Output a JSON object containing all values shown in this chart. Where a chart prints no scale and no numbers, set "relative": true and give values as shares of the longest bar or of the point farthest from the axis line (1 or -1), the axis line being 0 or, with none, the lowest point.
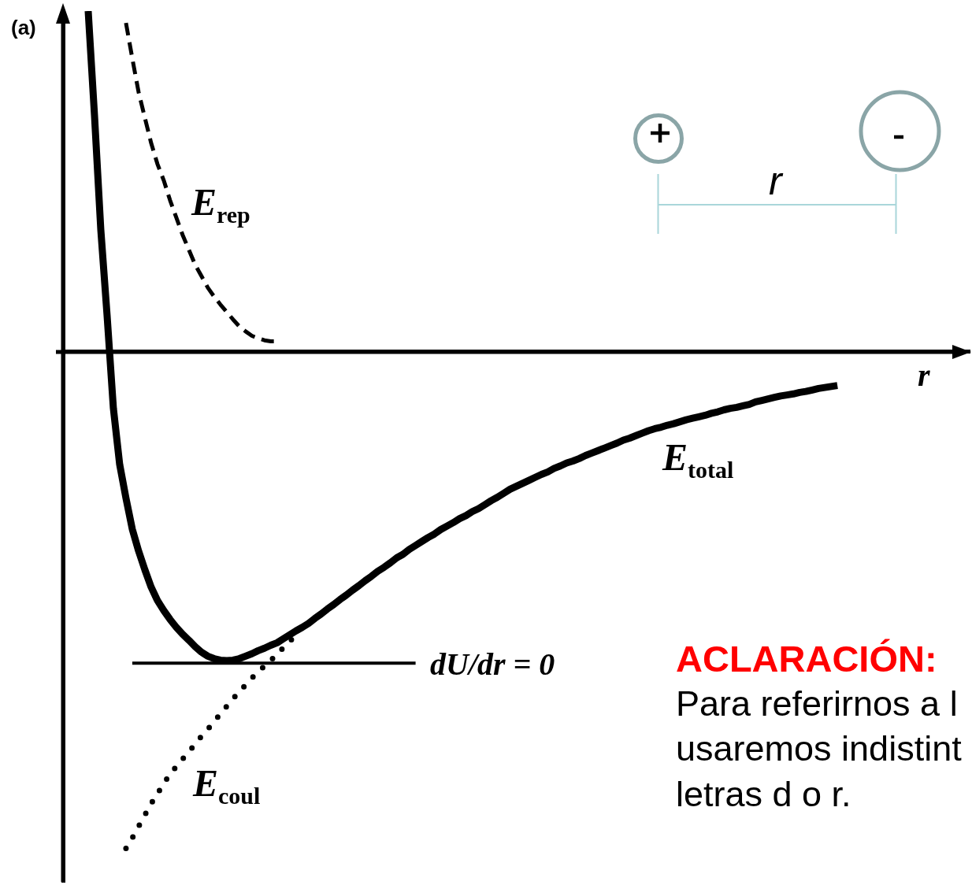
{
  "chart_data": {
    "type": "line",
    "relative": true,
    "xlabel": "r",
    "ylabel": "(a)",
    "categories": [
      null,
      null,
      null,
      null,
      null,
      null,
      null,
      null,
      null,
      null,
      null,
      null,
      null,
      null,
      null,
      null,
      null,
      null,
      null,
      null,
      null,
      null,
      null,
      null,
      null,
      null,
      null,
      null,
      null,
      null,
      null,
      null,
      null,
      null,
      null,
      null,
      null,
      null,
      null,
      null,
      null,
      null,
      null,
      null,
      null,
      null,
      null,
      null,
      null,
      null,
      null,
      null,
      null,
      null,
      null,
      null,
      null,
      null,
      null,
      null,
      null,
      null,
      null,
      null,
      null,
      null,
      null,
      null,
      null,
      null,
      null,
      null,
      null,
      null,
      null,
      null,
      null,
      null,
      null,
      null,
      null,
      null,
      null,
      null,
      null,
      null,
      null,
      null,
      null,
      null,
      null,
      null,
      null,
      null,
      null,
      null,
      null,
      null,
      null,
      null,
      null,
      null,
      null,
      null,
      null,
      null,
      null,
      null,
      null,
      null,
      null,
      null,
      null,
      null,
      null,
      null,
      null,
      null,
      null,
      null,
      null,
      null,
      null,
      null,
      null,
      null,
      null,
      null,
      null,
      null,
      null,
      null,
      null,
      null,
      null,
      null,
      null,
      null,
      null,
      null,
      null,
      null,
      null,
      null,
      null
    ],
    "series": [
      {
        "name": "E$_{rep}$",
        "color": "#000000",
        "line_style": "dashed",
        "values": [
          null,
          null,
          null,
          null,
          null,
          null,
          null,
          null,
          null,
          null,
          0.662,
          0.591,
          0.523,
          0.471,
          0.42,
          0.378,
          0.345,
          0.305,
          0.27,
          0.235,
          0.205,
          0.175,
          0.152,
          0.129,
          0.111,
          0.095,
          0.08,
          0.065,
          0.051,
          0.041,
          0.032,
          0.027,
          0.023,
          0.021,
          0.021,
          null,
          null,
          null,
          null,
          null,
          null,
          null,
          null,
          null,
          null,
          null,
          null,
          null,
          null,
          null,
          null,
          null,
          null,
          null,
          null,
          null,
          null,
          null,
          null,
          null,
          null,
          null,
          null,
          null,
          null,
          null,
          null,
          null,
          null,
          null,
          null,
          null,
          null,
          null,
          null,
          null,
          null,
          null,
          null,
          null,
          null,
          null,
          null,
          null,
          null,
          null,
          null,
          null,
          null,
          null,
          null,
          null,
          null,
          null,
          null,
          null,
          null,
          null,
          null,
          null,
          null,
          null,
          null,
          null,
          null,
          null,
          null,
          null,
          null,
          null,
          null,
          null,
          null,
          null,
          null,
          null,
          null,
          null,
          null,
          null,
          null,
          null,
          null,
          null,
          null,
          null,
          null,
          null,
          null,
          null,
          null,
          null,
          null,
          null,
          null,
          null,
          null,
          null,
          null,
          null,
          null,
          null,
          null,
          null,
          null
        ]
      },
      {
        "name": "E$_{total}$",
        "color": "#000000",
        "line_style": "solid",
        "values": [
          null,
          null,
          null,
          null,
          0.686,
          0.476,
          0.246,
          0.073,
          -0.114,
          -0.227,
          -0.295,
          -0.357,
          -0.401,
          -0.439,
          -0.474,
          -0.501,
          -0.521,
          -0.539,
          -0.555,
          -0.569,
          -0.581,
          -0.594,
          -0.605,
          -0.613,
          -0.618,
          -0.621,
          -0.622,
          -0.621,
          -0.618,
          -0.613,
          -0.608,
          -0.602,
          -0.597,
          -0.591,
          -0.586,
          -0.578,
          -0.57,
          -0.562,
          -0.555,
          -0.547,
          -0.537,
          -0.528,
          -0.518,
          -0.509,
          -0.499,
          -0.49,
          -0.48,
          -0.471,
          -0.461,
          -0.452,
          -0.442,
          -0.434,
          -0.425,
          -0.415,
          -0.408,
          -0.398,
          -0.39,
          -0.382,
          -0.374,
          -0.367,
          -0.358,
          -0.351,
          -0.344,
          -0.336,
          -0.33,
          -0.322,
          -0.316,
          -0.308,
          -0.3,
          -0.293,
          -0.285,
          -0.277,
          -0.271,
          -0.265,
          -0.259,
          -0.253,
          -0.247,
          -0.242,
          -0.235,
          -0.23,
          -0.224,
          -0.22,
          -0.215,
          -0.209,
          -0.204,
          -0.199,
          -0.194,
          -0.189,
          -0.184,
          -0.178,
          -0.174,
          -0.169,
          -0.164,
          -0.159,
          -0.155,
          -0.152,
          -0.148,
          -0.145,
          -0.141,
          -0.137,
          -0.134,
          -0.131,
          -0.128,
          -0.124,
          -0.121,
          -0.117,
          -0.114,
          -0.112,
          -0.109,
          -0.106,
          -0.101,
          -0.098,
          -0.095,
          -0.092,
          -0.089,
          -0.087,
          -0.085,
          -0.082,
          -0.08,
          -0.077,
          -0.074,
          -0.072,
          -0.07,
          -0.068,
          null,
          null,
          null,
          null,
          null,
          null,
          null,
          null,
          null,
          null,
          null,
          null,
          null,
          null,
          null,
          null,
          null,
          null,
          null,
          null,
          null
        ]
      },
      {
        "name": "E$_{coul}$",
        "color": "#000000",
        "line_style": "dotted",
        "values": [
          null,
          null,
          null,
          null,
          null,
          null,
          null,
          null,
          null,
          null,
          -1,
          -0.979,
          -0.956,
          -0.933,
          -0.91,
          -0.89,
          -0.869,
          -0.851,
          -0.835,
          -0.82,
          -0.805,
          -0.79,
          -0.774,
          -0.76,
          -0.745,
          -0.729,
          -0.714,
          -0.699,
          -0.684,
          -0.671,
          -0.657,
          -0.644,
          -0.633,
          -0.622,
          -0.608,
          -0.596,
          -0.583,
          -0.571,
          null,
          null,
          null,
          null,
          null,
          null,
          null,
          null,
          null,
          null,
          null,
          null,
          null,
          null,
          null,
          null,
          null,
          null,
          null,
          null,
          null,
          null,
          null,
          null,
          null,
          null,
          null,
          null,
          null,
          null,
          null,
          null,
          null,
          null,
          null,
          null,
          null,
          null,
          null,
          null,
          null,
          null,
          null,
          null,
          null,
          null,
          null,
          null,
          null,
          null,
          null,
          null,
          null,
          null,
          null,
          null,
          null,
          null,
          null,
          null,
          null,
          null,
          null,
          null,
          null,
          null,
          null,
          null,
          null,
          null,
          null,
          null,
          null,
          null,
          null,
          null,
          null,
          null,
          null,
          null,
          null,
          null,
          null,
          null,
          null,
          null,
          null,
          null,
          null,
          null,
          null,
          null,
          null,
          null,
          null,
          null,
          null,
          null,
          null,
          null,
          null,
          null,
          null,
          null,
          null,
          null,
          null
        ]
      },
      {
        "name": "dU/dr = 0",
        "color": "#000000",
        "line_style": "solid",
        "values": [
          null,
          null,
          null,
          null,
          null,
          null,
          null,
          null,
          null,
          null,
          null,
          -0.627,
          -0.627,
          -0.627,
          -0.627,
          -0.627,
          -0.627,
          -0.627,
          -0.627,
          -0.627,
          -0.627,
          -0.627,
          -0.627,
          -0.627,
          -0.627,
          -0.627,
          -0.627,
          -0.627,
          -0.627,
          -0.627,
          -0.627,
          -0.627,
          -0.627,
          -0.627,
          -0.627,
          -0.627,
          -0.627,
          -0.627,
          -0.627,
          -0.627,
          -0.627,
          -0.627,
          -0.627,
          -0.627,
          -0.627,
          -0.627,
          -0.627,
          -0.627,
          -0.627,
          -0.627,
          -0.627,
          -0.627,
          -0.627,
          -0.627,
          -0.627,
          -0.627,
          -0.627,
          null,
          null,
          null,
          null,
          null,
          null,
          null,
          null,
          null,
          null,
          null,
          null,
          null,
          null,
          null,
          null,
          null,
          null,
          null,
          null,
          null,
          null,
          null,
          null,
          null,
          null,
          null,
          null,
          null,
          null,
          null,
          null,
          null,
          null,
          null,
          null,
          null,
          null,
          null,
          null,
          null,
          null,
          null,
          null,
          null,
          null,
          null,
          null,
          null,
          null,
          null,
          null,
          null,
          null,
          null,
          null,
          null,
          null,
          null,
          null,
          null,
          null,
          null,
          null,
          null,
          null,
          null,
          null,
          null,
          null,
          null,
          null,
          null,
          null,
          null,
          null,
          null,
          null,
          null,
          null,
          null,
          null,
          null,
          null,
          null,
          null,
          null,
          null
        ]
      }
    ],
    "annotations": [
      "r",
      "ACLARACIÓN:",
      "Para referirnos a l",
      "usaremos indistint",
      "letras d o r."
    ]
  }
}
